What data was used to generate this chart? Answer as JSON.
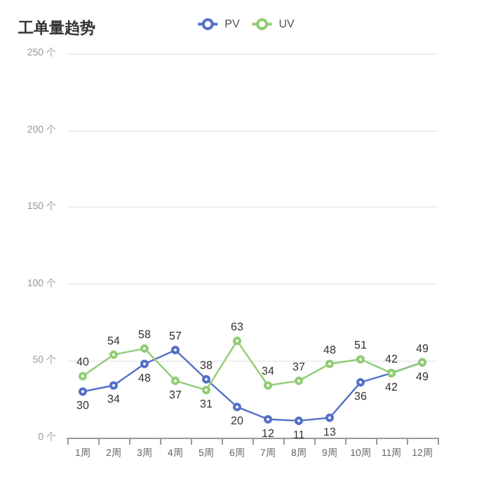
{
  "chart_data": {
    "type": "line",
    "title": "工单量趋势",
    "categories": [
      "1周",
      "2周",
      "3周",
      "4周",
      "5周",
      "6周",
      "7周",
      "8周",
      "9周",
      "10周",
      "11周",
      "12周"
    ],
    "series": [
      {
        "name": "PV",
        "color": "#5470c6",
        "values": [
          30,
          34,
          48,
          57,
          38,
          20,
          12,
          11,
          13,
          36,
          42,
          49
        ]
      },
      {
        "name": "UV",
        "color": "#91cc75",
        "values": [
          40,
          54,
          58,
          37,
          31,
          63,
          34,
          37,
          48,
          51,
          42,
          49
        ]
      }
    ],
    "ylim": [
      0,
      250
    ],
    "yticks": [
      {
        "value": 0,
        "label": "0 个"
      },
      {
        "value": 50,
        "label": "50 个"
      },
      {
        "value": 100,
        "label": "100 个"
      },
      {
        "value": 150,
        "label": "150 个"
      },
      {
        "value": 200,
        "label": "200 个"
      },
      {
        "value": 250,
        "label": "250 个"
      }
    ],
    "grid": "y",
    "legend": "top",
    "marker": "circle",
    "data_labels": true
  }
}
